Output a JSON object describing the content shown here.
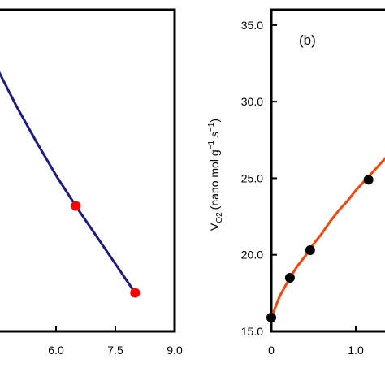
{
  "chart_data": [
    {
      "type": "line",
      "panel": "a",
      "title": "",
      "xlabel": "",
      "ylabel": "",
      "xlim": [
        4.5,
        9.0
      ],
      "x_tick_labels": [
        "6.0",
        "7.5",
        "9.0"
      ],
      "x_ticks": [
        6.0,
        7.5,
        9.0
      ],
      "grid": false,
      "series": [
        {
          "color": "#1a1a8c",
          "marker_color": "#ff0000",
          "curve": {
            "x": [
              4.5,
              5.0,
              5.5,
              6.0,
              6.5,
              7.0,
              7.5,
              8.0
            ],
            "y": [
              0.82,
              0.7,
              0.59,
              0.485,
              0.39,
              0.3,
              0.21,
              0.12
            ]
          },
          "points": {
            "x": [
              6.5,
              8.0
            ],
            "y": [
              0.39,
              0.12
            ]
          }
        }
      ]
    },
    {
      "type": "line",
      "panel": "b",
      "panel_label": "(b)",
      "title": "",
      "xlabel": "",
      "ylabel": "V",
      "ylabel_sub": "O2",
      "ylabel_units": "(nano mol g",
      "ylabel_sup1": "−1",
      "ylabel_mid": " s",
      "ylabel_sup2": "−1",
      "ylabel_end": ")",
      "ylim": [
        15.0,
        36.0
      ],
      "y_ticks": [
        15.0,
        20.0,
        25.0,
        30.0,
        35.0
      ],
      "y_tick_labels": [
        "15.0",
        "20.0",
        "25.0",
        "30.0",
        "35.0"
      ],
      "xlim": [
        0,
        1.4
      ],
      "x_ticks": [
        0,
        1.0
      ],
      "x_tick_labels": [
        "0",
        "1.0"
      ],
      "grid": false,
      "series": [
        {
          "color": "#ff4000",
          "marker_color": "#000000",
          "curve": {
            "x": [
              0,
              0.1,
              0.2,
              0.3,
              0.4,
              0.5,
              0.6,
              0.7,
              0.8,
              0.9,
              1.0,
              1.1,
              1.2,
              1.3,
              1.4
            ],
            "y": [
              15.9,
              17.3,
              18.3,
              19.2,
              19.9,
              20.7,
              21.4,
              22.2,
              22.9,
              23.5,
              24.2,
              24.8,
              25.4,
              26.0,
              26.6
            ]
          },
          "points": {
            "x": [
              0,
              0.22,
              0.46,
              1.15
            ],
            "y": [
              15.9,
              18.5,
              20.3,
              24.9
            ]
          }
        }
      ]
    }
  ]
}
